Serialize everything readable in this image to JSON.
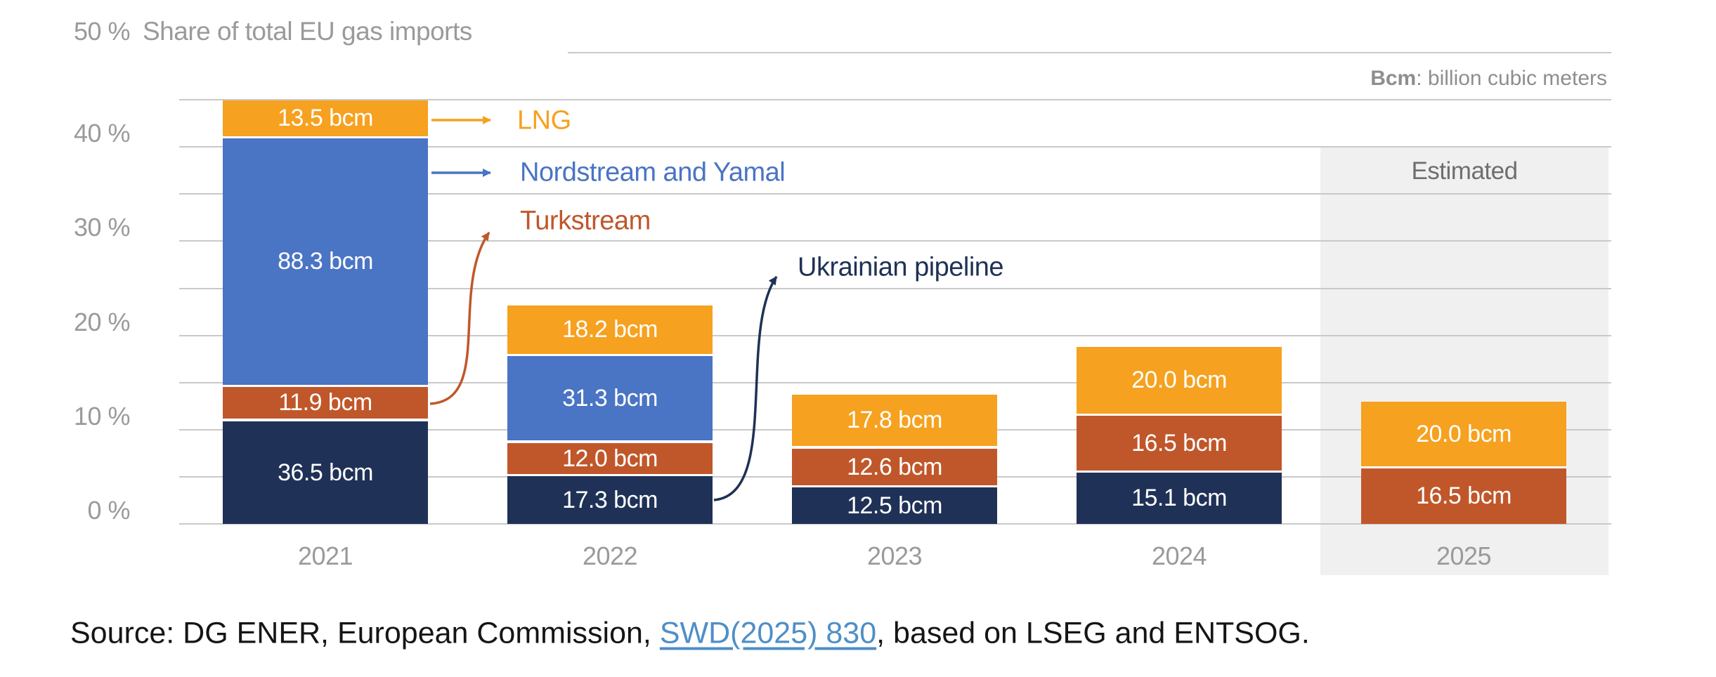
{
  "header": {
    "title": "Share of total EU gas imports",
    "unit_term": "Bcm",
    "unit_definition": ": billion cubic meters"
  },
  "estimated_label": "Estimated",
  "y_axis": {
    "tick_labels": [
      "0 %",
      "10 %",
      "20 %",
      "30 %",
      "40 %",
      "50 %"
    ]
  },
  "colors": {
    "lng": "#F6A11F",
    "nordstream": "#4A74C4",
    "turkstream": "#C0572A",
    "ukrainian": "#1F3156",
    "grid": "#C9C9C9",
    "band": "#F0F0F1",
    "axis_text": "#9A9A9A",
    "title_text": "#9A9A9A",
    "estimated_text": "#6E6E6E",
    "note_text": "#8E8E8E",
    "value_text": "#FFFFFF",
    "source_text": "#151515",
    "link": "#4E8FC7"
  },
  "legend": [
    {
      "id": "lng",
      "label": "LNG",
      "color_key": "lng"
    },
    {
      "id": "nordstream",
      "label": "Nordstream and Yamal",
      "color_key": "nordstream"
    },
    {
      "id": "turkstream",
      "label": "Turkstream",
      "color_key": "turkstream"
    },
    {
      "id": "ukrainian",
      "label": "Ukrainian pipeline",
      "color_key": "ukrainian"
    }
  ],
  "chart_data": {
    "type": "bar",
    "stacked": true,
    "title": "Share of total EU gas imports",
    "ylabel": "Share of total EU gas imports (%)",
    "ylim": [
      0,
      50
    ],
    "gridline_step_pct": 5,
    "grid": true,
    "unit": "bcm",
    "categories": [
      "2021",
      "2022",
      "2023",
      "2024",
      "2025"
    ],
    "series": [
      {
        "name": "Ukrainian pipeline",
        "color_key": "ukrainian",
        "values_bcm": [
          36.5,
          17.3,
          12.5,
          15.1,
          null
        ],
        "share_pct": [
          10.9,
          5.1,
          3.9,
          5.5,
          null
        ]
      },
      {
        "name": "Turkstream",
        "color_key": "turkstream",
        "values_bcm": [
          11.9,
          12.0,
          12.6,
          16.5,
          16.5
        ],
        "share_pct": [
          3.6,
          3.5,
          4.1,
          6.0,
          5.9
        ]
      },
      {
        "name": "Nordstream and Yamal",
        "color_key": "nordstream",
        "values_bcm": [
          88.3,
          31.3,
          null,
          null,
          null
        ],
        "share_pct": [
          26.4,
          9.2,
          null,
          null,
          null
        ]
      },
      {
        "name": "LNG",
        "color_key": "lng",
        "values_bcm": [
          13.5,
          18.2,
          17.8,
          20.0,
          20.0
        ],
        "share_pct": [
          4.0,
          5.4,
          5.7,
          7.3,
          7.1
        ]
      }
    ],
    "value_label_suffix": " bcm",
    "estimated_category": "2025"
  },
  "source": {
    "prefix": "Source: DG ENER, European Commission, ",
    "link_text": "SWD(2025) 830",
    "suffix": ", based on LSEG and ENTSOG."
  }
}
